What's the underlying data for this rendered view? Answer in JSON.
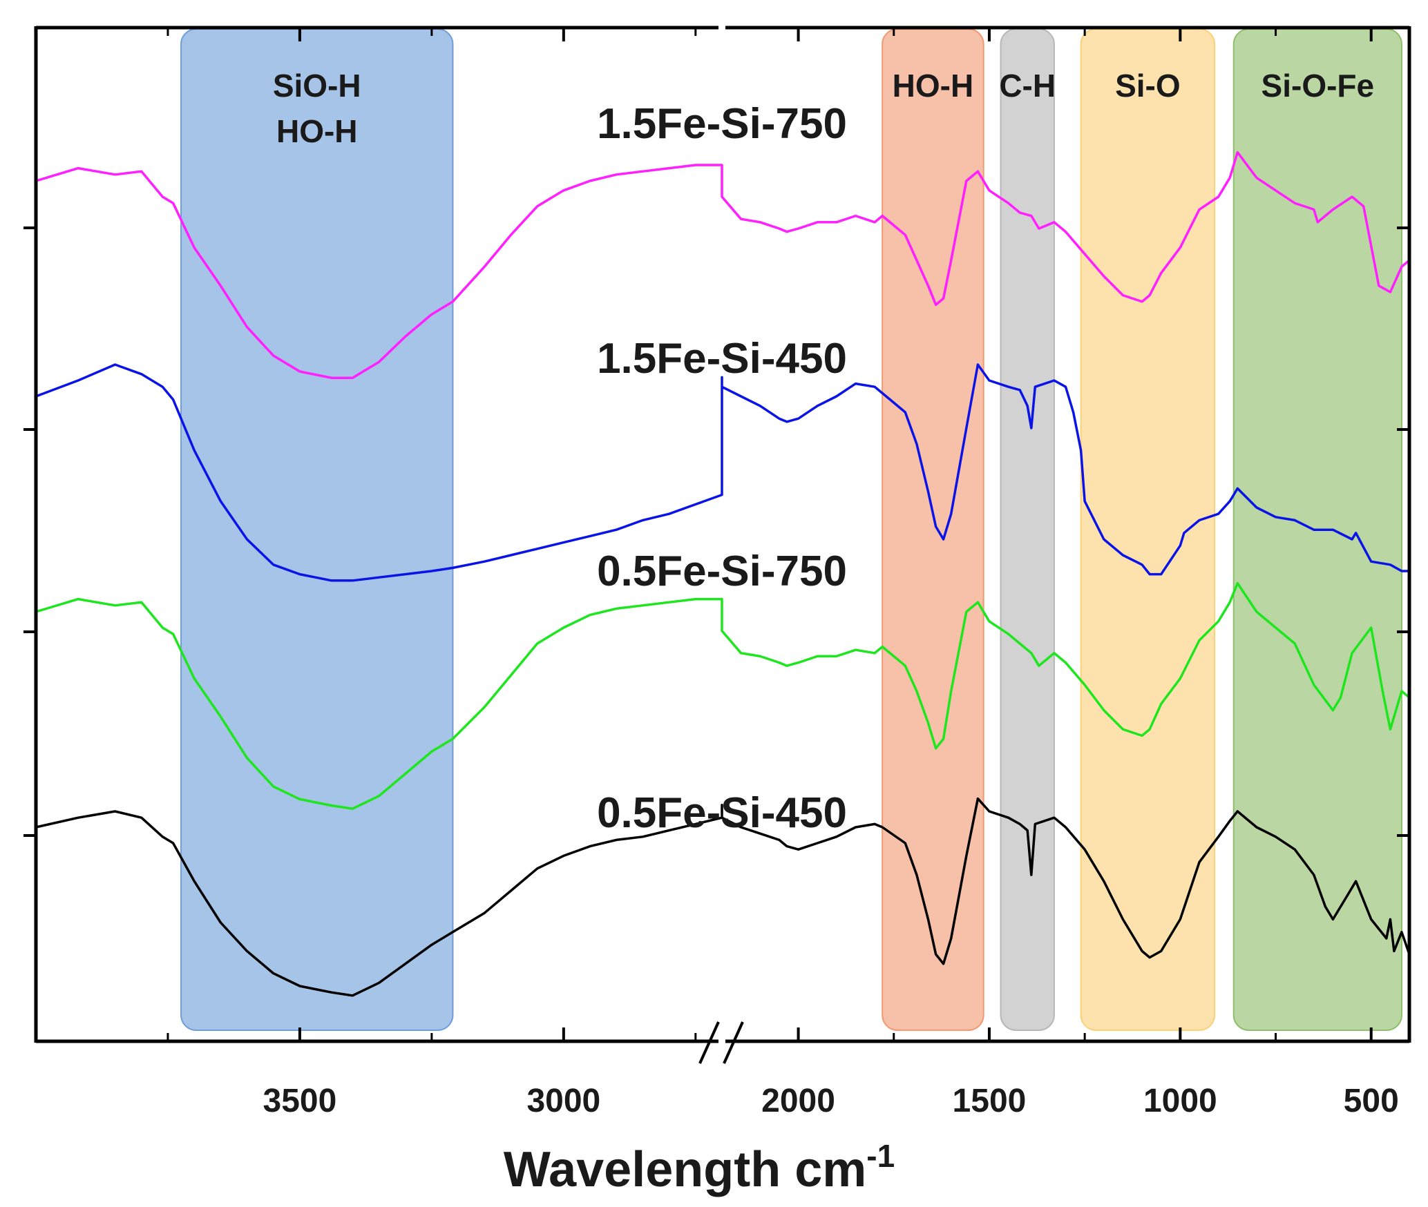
{
  "chart_data": {
    "type": "line",
    "title": "",
    "xlabel": "Wavelength cm",
    "xlabel_superscript": "-1",
    "ylabel": "",
    "x_axis_break": {
      "from": 2700,
      "to": 2200
    },
    "xlim": [
      4000,
      400
    ],
    "x_ticks": [
      3500,
      3000,
      2000,
      1500,
      1000,
      500
    ],
    "grid": false,
    "bands": [
      {
        "label_lines": [
          "SiO-H",
          "HO-H"
        ],
        "from": 3725,
        "to": 3210,
        "color": "#6f9fd8"
      },
      {
        "label_lines": [
          "HO-H"
        ],
        "from": 1780,
        "to": 1515,
        "color": "#f29a72"
      },
      {
        "label_lines": [
          "C-H"
        ],
        "from": 1470,
        "to": 1330,
        "color": "#b7b7b7"
      },
      {
        "label_lines": [
          "Si-O"
        ],
        "from": 1260,
        "to": 910,
        "color": "#fbd17a"
      },
      {
        "label_lines": [
          "Si-O-Fe"
        ],
        "from": 860,
        "to": 420,
        "color": "#8fbf6a"
      }
    ],
    "series": [
      {
        "name": "1.5Fe-Si-750",
        "color": "#ff1fff",
        "offset": 3,
        "x": [
          4000,
          3920,
          3850,
          3800,
          3760,
          3740,
          3700,
          3650,
          3600,
          3550,
          3500,
          3470,
          3440,
          3400,
          3350,
          3300,
          3250,
          3210,
          3150,
          3100,
          3050,
          3000,
          2950,
          2900,
          2850,
          2800,
          2750,
          2700,
          2200,
          2150,
          2100,
          2050,
          2030,
          2000,
          1950,
          1900,
          1850,
          1800,
          1780,
          1720,
          1690,
          1660,
          1640,
          1620,
          1600,
          1560,
          1530,
          1500,
          1450,
          1420,
          1390,
          1370,
          1330,
          1300,
          1250,
          1200,
          1150,
          1100,
          1080,
          1050,
          1000,
          950,
          900,
          870,
          850,
          800,
          750,
          700,
          650,
          640,
          600,
          550,
          520,
          480,
          450,
          420,
          400
        ],
        "y": [
          0.95,
          0.99,
          0.97,
          0.98,
          0.9,
          0.88,
          0.74,
          0.62,
          0.49,
          0.4,
          0.35,
          0.34,
          0.33,
          0.33,
          0.38,
          0.46,
          0.53,
          0.57,
          0.68,
          0.78,
          0.87,
          0.92,
          0.95,
          0.97,
          0.98,
          0.99,
          1.0,
          1.0,
          0.9,
          0.83,
          0.82,
          0.8,
          0.79,
          0.8,
          0.82,
          0.82,
          0.84,
          0.82,
          0.84,
          0.78,
          0.7,
          0.62,
          0.56,
          0.58,
          0.7,
          0.95,
          0.98,
          0.92,
          0.88,
          0.85,
          0.84,
          0.8,
          0.82,
          0.79,
          0.72,
          0.65,
          0.59,
          0.57,
          0.59,
          0.66,
          0.74,
          0.86,
          0.9,
          0.96,
          1.04,
          0.96,
          0.92,
          0.88,
          0.86,
          0.82,
          0.86,
          0.9,
          0.87,
          0.62,
          0.6,
          0.68,
          0.7
        ]
      },
      {
        "name": "1.5Fe-Si-450",
        "color": "#0a14e6",
        "offset": 2,
        "x": [
          4000,
          3920,
          3850,
          3800,
          3760,
          3740,
          3700,
          3650,
          3600,
          3550,
          3500,
          3470,
          3440,
          3400,
          3350,
          3300,
          3250,
          3210,
          3150,
          3100,
          3050,
          3000,
          2950,
          2900,
          2850,
          2800,
          2750,
          2700,
          2700,
          2200,
          2150,
          2100,
          2050,
          2030,
          2000,
          1950,
          1900,
          1850,
          1800,
          1780,
          1720,
          1690,
          1660,
          1640,
          1620,
          1600,
          1560,
          1530,
          1500,
          1450,
          1420,
          1400,
          1390,
          1380,
          1330,
          1300,
          1280,
          1260,
          1250,
          1200,
          1150,
          1100,
          1080,
          1050,
          1000,
          990,
          950,
          900,
          870,
          850,
          800,
          750,
          700,
          650,
          600,
          550,
          540,
          500,
          450,
          420,
          400
        ],
        "y": [
          0.95,
          1.0,
          1.05,
          1.02,
          0.98,
          0.94,
          0.78,
          0.62,
          0.5,
          0.42,
          0.39,
          0.38,
          0.37,
          0.37,
          0.38,
          0.39,
          0.4,
          0.41,
          0.43,
          0.45,
          0.47,
          0.49,
          0.51,
          0.53,
          0.56,
          0.58,
          0.61,
          0.64,
          1.01,
          0.98,
          0.95,
          0.92,
          0.88,
          0.87,
          0.88,
          0.92,
          0.95,
          0.99,
          0.98,
          0.96,
          0.9,
          0.8,
          0.65,
          0.54,
          0.5,
          0.58,
          0.85,
          1.05,
          1.0,
          0.98,
          0.97,
          0.92,
          0.85,
          0.98,
          1.0,
          0.98,
          0.9,
          0.78,
          0.62,
          0.5,
          0.45,
          0.42,
          0.39,
          0.39,
          0.48,
          0.52,
          0.56,
          0.58,
          0.62,
          0.66,
          0.6,
          0.57,
          0.56,
          0.53,
          0.53,
          0.5,
          0.52,
          0.43,
          0.42,
          0.4,
          0.4
        ]
      },
      {
        "name": "0.5Fe-Si-750",
        "color": "#1ee61e",
        "offset": 1,
        "x": [
          4000,
          3920,
          3850,
          3800,
          3760,
          3740,
          3700,
          3650,
          3600,
          3550,
          3500,
          3470,
          3440,
          3400,
          3350,
          3300,
          3250,
          3210,
          3150,
          3100,
          3050,
          3000,
          2950,
          2900,
          2850,
          2800,
          2750,
          2700,
          2200,
          2150,
          2100,
          2050,
          2030,
          2000,
          1950,
          1900,
          1850,
          1800,
          1780,
          1720,
          1690,
          1660,
          1640,
          1620,
          1600,
          1560,
          1530,
          1500,
          1450,
          1420,
          1390,
          1370,
          1330,
          1300,
          1250,
          1200,
          1150,
          1100,
          1080,
          1050,
          1000,
          950,
          900,
          870,
          850,
          800,
          750,
          700,
          650,
          600,
          580,
          550,
          500,
          470,
          450,
          420,
          400
        ],
        "y": [
          0.95,
          0.99,
          0.97,
          0.98,
          0.9,
          0.88,
          0.74,
          0.62,
          0.49,
          0.4,
          0.36,
          0.35,
          0.34,
          0.33,
          0.37,
          0.44,
          0.51,
          0.55,
          0.65,
          0.75,
          0.85,
          0.9,
          0.94,
          0.96,
          0.97,
          0.98,
          0.99,
          0.99,
          0.89,
          0.82,
          0.81,
          0.79,
          0.78,
          0.79,
          0.81,
          0.81,
          0.83,
          0.82,
          0.84,
          0.78,
          0.7,
          0.6,
          0.52,
          0.55,
          0.7,
          0.95,
          0.98,
          0.92,
          0.88,
          0.85,
          0.82,
          0.78,
          0.82,
          0.79,
          0.72,
          0.64,
          0.58,
          0.56,
          0.58,
          0.66,
          0.74,
          0.86,
          0.92,
          0.98,
          1.04,
          0.95,
          0.9,
          0.85,
          0.72,
          0.64,
          0.68,
          0.82,
          0.9,
          0.7,
          0.58,
          0.7,
          0.68
        ]
      },
      {
        "name": "0.5Fe-Si-450",
        "color": "#000000",
        "offset": 0,
        "x": [
          4000,
          3920,
          3850,
          3800,
          3760,
          3740,
          3700,
          3650,
          3600,
          3550,
          3500,
          3470,
          3440,
          3400,
          3350,
          3300,
          3250,
          3210,
          3150,
          3100,
          3050,
          3000,
          2950,
          2900,
          2850,
          2800,
          2750,
          2700,
          2700,
          2200,
          2150,
          2100,
          2050,
          2030,
          2000,
          1950,
          1900,
          1850,
          1800,
          1780,
          1720,
          1690,
          1660,
          1640,
          1620,
          1600,
          1560,
          1530,
          1500,
          1450,
          1420,
          1400,
          1390,
          1380,
          1330,
          1300,
          1250,
          1200,
          1150,
          1100,
          1080,
          1050,
          1000,
          950,
          900,
          870,
          850,
          800,
          750,
          700,
          650,
          620,
          600,
          560,
          540,
          500,
          460,
          450,
          440,
          420,
          400
        ],
        "y": [
          0.95,
          0.98,
          1.0,
          0.98,
          0.92,
          0.9,
          0.78,
          0.65,
          0.56,
          0.49,
          0.45,
          0.44,
          0.43,
          0.42,
          0.46,
          0.52,
          0.58,
          0.62,
          0.68,
          0.75,
          0.82,
          0.86,
          0.89,
          0.91,
          0.92,
          0.94,
          0.96,
          0.98,
          1.02,
          0.98,
          0.95,
          0.93,
          0.91,
          0.89,
          0.88,
          0.9,
          0.92,
          0.95,
          0.96,
          0.95,
          0.9,
          0.8,
          0.66,
          0.55,
          0.52,
          0.6,
          0.86,
          1.04,
          1.0,
          0.98,
          0.96,
          0.94,
          0.8,
          0.96,
          0.98,
          0.95,
          0.88,
          0.78,
          0.66,
          0.56,
          0.54,
          0.56,
          0.66,
          0.84,
          0.92,
          0.97,
          1.0,
          0.95,
          0.92,
          0.88,
          0.8,
          0.7,
          0.66,
          0.74,
          0.78,
          0.66,
          0.6,
          0.66,
          0.56,
          0.62,
          0.55
        ]
      }
    ]
  }
}
